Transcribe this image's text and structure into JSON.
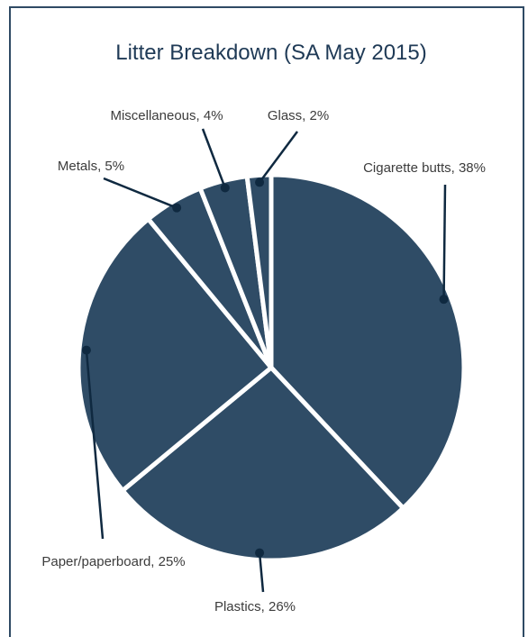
{
  "chart_data": {
    "type": "pie",
    "title": "Litter Breakdown (SA May 2015)",
    "slices": [
      {
        "label": "Cigarette butts, 38%",
        "category": "Cigarette butts",
        "value": 38
      },
      {
        "label": "Plastics, 26%",
        "category": "Plastics",
        "value": 26
      },
      {
        "label": "Paper/paperboard, 25%",
        "category": "Paper/paperboard",
        "value": 25
      },
      {
        "label": "Metals, 5%",
        "category": "Metals",
        "value": 5
      },
      {
        "label": "Miscellaneous, 4%",
        "category": "Miscellaneous",
        "value": 4
      },
      {
        "label": "Glass, 2%",
        "category": "Glass",
        "value": 2
      }
    ],
    "colors": {
      "slice": "#2f4c66",
      "separator": "#ffffff",
      "frame": "#2f4a64",
      "title": "#1f3a56",
      "label": "#3c3c3c"
    }
  }
}
